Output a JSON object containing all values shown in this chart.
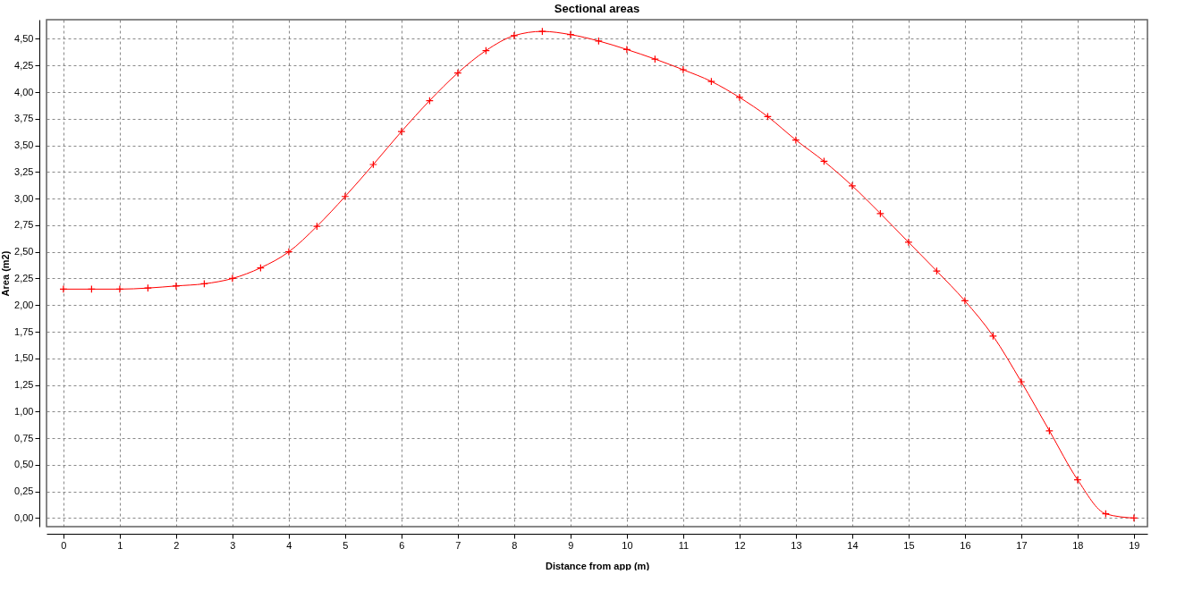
{
  "chart_data": {
    "type": "line",
    "title": "Sectional areas",
    "xlabel": "Distance from app (m)",
    "ylabel": "Area (m2)",
    "x": [
      0,
      0.5,
      1,
      1.5,
      2,
      2.5,
      3,
      3.5,
      4,
      4.5,
      5,
      5.5,
      6,
      6.5,
      7,
      7.5,
      8,
      8.5,
      9,
      9.5,
      10,
      10.5,
      11,
      11.5,
      12,
      12.5,
      13,
      13.5,
      14,
      14.5,
      15,
      15.5,
      16,
      16.5,
      17,
      17.5,
      18,
      18.5,
      19
    ],
    "series": [
      {
        "color": "#ff0000",
        "values": [
          2.15,
          2.15,
          2.15,
          2.16,
          2.18,
          2.2,
          2.25,
          2.35,
          2.5,
          2.74,
          3.02,
          3.32,
          3.63,
          3.92,
          4.18,
          4.39,
          4.53,
          4.57,
          4.54,
          4.48,
          4.4,
          4.31,
          4.21,
          4.1,
          3.95,
          3.77,
          3.55,
          3.35,
          3.12,
          2.86,
          2.59,
          2.32,
          2.04,
          1.71,
          1.28,
          0.82,
          0.36,
          0.04,
          0.0
        ]
      }
    ],
    "xlim": [
      -0.3,
      19.24
    ],
    "ylim": [
      -0.08,
      4.68
    ],
    "xticks": [
      0,
      1,
      2,
      3,
      4,
      5,
      6,
      7,
      8,
      9,
      10,
      11,
      12,
      13,
      14,
      15,
      16,
      17,
      18,
      19
    ],
    "yticks": [
      {
        "value": 0,
        "label": "0,00"
      },
      {
        "value": 0.25,
        "label": "0,25"
      },
      {
        "value": 0.5,
        "label": "0,50"
      },
      {
        "value": 0.75,
        "label": "0,75"
      },
      {
        "value": 1,
        "label": "1,00"
      },
      {
        "value": 1.25,
        "label": "1,25"
      },
      {
        "value": 1.5,
        "label": "1,50"
      },
      {
        "value": 1.75,
        "label": "1,75"
      },
      {
        "value": 2,
        "label": "2,00"
      },
      {
        "value": 2.25,
        "label": "2,25"
      },
      {
        "value": 2.5,
        "label": "2,50"
      },
      {
        "value": 2.75,
        "label": "2,75"
      },
      {
        "value": 3,
        "label": "3,00"
      },
      {
        "value": 3.25,
        "label": "3,25"
      },
      {
        "value": 3.5,
        "label": "3,50"
      },
      {
        "value": 3.75,
        "label": "3,75"
      },
      {
        "value": 4,
        "label": "4,00"
      },
      {
        "value": 4.25,
        "label": "4,25"
      },
      {
        "value": 4.5,
        "label": "4,50"
      }
    ],
    "grid": true,
    "marker": "cross",
    "line_style": "solid"
  }
}
